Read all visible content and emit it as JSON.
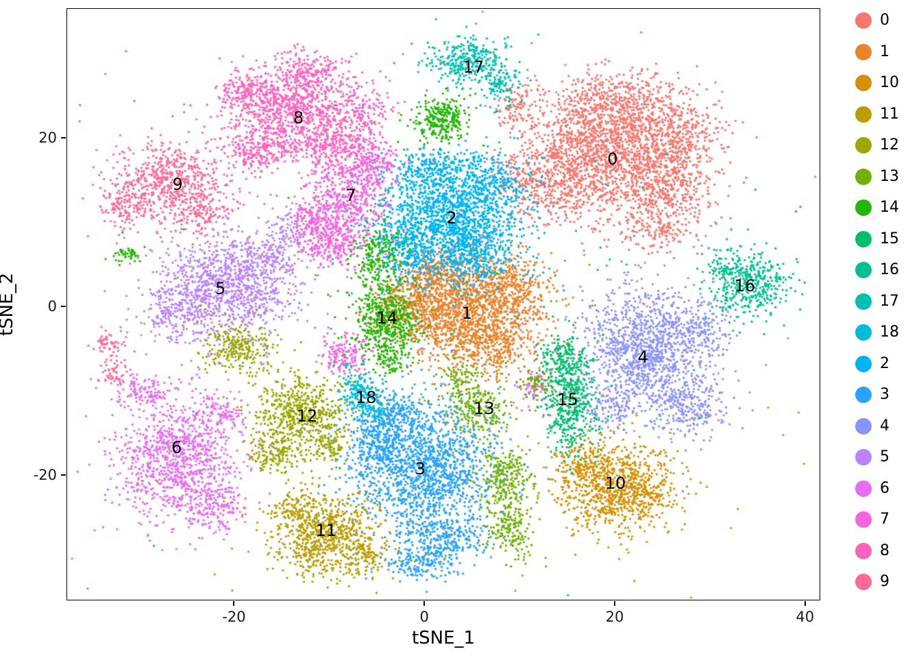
{
  "figure": {
    "background": "#FFFFFF",
    "description": "t-SNE cluster scatter plot with 19 clusters (0-18)"
  },
  "chart_data": {
    "type": "scatter",
    "title": "",
    "xlabel": "tSNE_1",
    "ylabel": "tSNE_2",
    "xlim": [
      -37.6,
      41.6
    ],
    "ylim": [
      -34.9,
      35.4
    ],
    "x_ticks": [
      -20,
      0,
      20,
      40
    ],
    "y_ticks": [
      -20,
      0,
      20
    ],
    "grid": false,
    "legend_position": "right",
    "point_radius_px": 1.7,
    "clusters": [
      {
        "id": "0",
        "color": "#F8766D",
        "label_x": 19.7,
        "label_y": 17.6,
        "blobs": [
          [
            19.5,
            18.5,
            4.2,
            3.6,
            1500
          ],
          [
            13.5,
            15,
            2.5,
            2.5,
            400
          ],
          [
            25,
            13.5,
            2.5,
            2.2,
            350
          ],
          [
            20,
            24,
            4,
            2,
            450
          ],
          [
            26.5,
            20,
            2.5,
            2.5,
            300
          ],
          [
            24.5,
            8.8,
            1.8,
            1.2,
            120
          ],
          [
            10,
            23.5,
            1.5,
            1.5,
            100
          ],
          [
            9.5,
            15,
            1,
            1.5,
            60
          ]
        ]
      },
      {
        "id": "1",
        "color": "#E9842C",
        "label_x": 4.4,
        "label_y": -0.7,
        "blobs": [
          [
            4.5,
            -0.5,
            3.8,
            3.2,
            1500
          ],
          [
            -1.5,
            0,
            2.2,
            1.8,
            350
          ],
          [
            9,
            2.5,
            2,
            2,
            300
          ],
          [
            1,
            4,
            2,
            1.5,
            250
          ],
          [
            7,
            -5,
            2,
            1.5,
            200
          ]
        ]
      },
      {
        "id": "2",
        "color": "#00B3F2",
        "label_x": 2.8,
        "label_y": 10.6,
        "blobs": [
          [
            2,
            10.5,
            3.6,
            3.4,
            1500
          ],
          [
            6.5,
            14.5,
            2,
            2,
            300
          ],
          [
            -2,
            6.5,
            1.5,
            1.5,
            200
          ],
          [
            5.5,
            6.5,
            2,
            2,
            300
          ],
          [
            0,
            16.5,
            1.5,
            1.2,
            150
          ]
        ]
      },
      {
        "id": "3",
        "color": "#29A3FF",
        "label_x": -0.5,
        "label_y": -19.2,
        "blobs": [
          [
            0,
            -19,
            3.6,
            4,
            1500
          ],
          [
            -3.5,
            -13,
            2,
            1.6,
            300
          ],
          [
            2,
            -27.5,
            2.2,
            1.8,
            300
          ],
          [
            -1,
            -30.5,
            1.5,
            1,
            120
          ],
          [
            -5,
            -17,
            1.5,
            1.5,
            200
          ]
        ]
      },
      {
        "id": "4",
        "color": "#8B93FF",
        "label_x": 22.9,
        "label_y": -5.9,
        "blobs": [
          [
            23,
            -5,
            3.2,
            3.6,
            1200
          ],
          [
            27.5,
            -11.5,
            2,
            1.8,
            250
          ],
          [
            19.5,
            -12,
            1.5,
            1.2,
            120
          ],
          [
            29.5,
            -3,
            1.5,
            2,
            150
          ]
        ]
      },
      {
        "id": "5",
        "color": "#B983FF",
        "label_x": -21.5,
        "label_y": 2.2,
        "blobs": [
          [
            -21,
            2.5,
            3.6,
            3.2,
            1100
          ],
          [
            -26.5,
            -0.5,
            1.8,
            1.5,
            150
          ],
          [
            -14,
            9.5,
            1.2,
            1.2,
            90
          ],
          [
            -16,
            6,
            1.5,
            1.2,
            120
          ]
        ]
      },
      {
        "id": "6",
        "color": "#E76BF3",
        "label_x": -26.1,
        "label_y": -16.7,
        "blobs": [
          [
            -26,
            -18,
            3.2,
            3.6,
            1000
          ],
          [
            -29.5,
            -9.8,
            1.5,
            1,
            120
          ],
          [
            -21.5,
            -12.5,
            1.2,
            1,
            80
          ],
          [
            -22,
            -24,
            1.5,
            1.5,
            150
          ],
          [
            11.5,
            -9.5,
            0.8,
            1.0,
            70
          ]
        ]
      },
      {
        "id": "7",
        "color": "#F763DF",
        "label_x": -7.8,
        "label_y": 13.3,
        "blobs": [
          [
            -8.5,
            12.5,
            2.1,
            2.4,
            480
          ],
          [
            -10,
            7.8,
            1.7,
            1.4,
            260
          ],
          [
            -5.8,
            16.8,
            1.5,
            1.5,
            220
          ],
          [
            -8.5,
            -5.5,
            1.3,
            1.2,
            160
          ],
          [
            -12,
            10.5,
            1,
            1,
            80
          ]
        ]
      },
      {
        "id": "8",
        "color": "#FF62BC",
        "label_x": -13.3,
        "label_y": 22.5,
        "blobs": [
          [
            -14,
            23.5,
            3.2,
            2.6,
            850
          ],
          [
            -9.8,
            19.2,
            2,
            1.8,
            280
          ],
          [
            -17.5,
            18.6,
            2,
            1.4,
            220
          ],
          [
            -12,
            27.8,
            2,
            1.2,
            180
          ],
          [
            -6.5,
            23.5,
            1.5,
            1.5,
            150
          ],
          [
            -19,
            25.5,
            1.3,
            1.3,
            120
          ]
        ]
      },
      {
        "id": "9",
        "color": "#FF6A98",
        "label_x": -26.0,
        "label_y": 14.6,
        "blobs": [
          [
            -27,
            14.8,
            2.9,
            2.4,
            650
          ],
          [
            -31.5,
            12,
            1.3,
            1.3,
            100
          ],
          [
            -23,
            11.5,
            1.3,
            1.3,
            100
          ],
          [
            -33.2,
            -4.3,
            0.9,
            0.9,
            55
          ],
          [
            -32.8,
            -7.8,
            0.8,
            0.8,
            45
          ]
        ]
      },
      {
        "id": "10",
        "color": "#D69100",
        "label_x": 20.0,
        "label_y": -20.9,
        "blobs": [
          [
            20.5,
            -21.5,
            3.0,
            2.6,
            900
          ],
          [
            16.5,
            -18.5,
            1.5,
            1.5,
            150
          ]
        ]
      },
      {
        "id": "11",
        "color": "#BC9D00",
        "label_x": -10.4,
        "label_y": -26.5,
        "blobs": [
          [
            -10.5,
            -27,
            2.6,
            2.4,
            750
          ],
          [
            -6,
            -29.5,
            1.5,
            1,
            100
          ],
          [
            -14,
            -24,
            1,
            1,
            80
          ]
        ]
      },
      {
        "id": "12",
        "color": "#9CA700",
        "label_x": -12.4,
        "label_y": -12.9,
        "blobs": [
          [
            -13,
            -12.5,
            2.3,
            2.1,
            550
          ],
          [
            -15.5,
            -17,
            1.5,
            1.3,
            180
          ],
          [
            -19.5,
            -4.8,
            1.8,
            1.4,
            260
          ],
          [
            -10,
            -16.5,
            1,
            1,
            80
          ]
        ]
      },
      {
        "id": "13",
        "color": "#71B000",
        "label_x": 6.2,
        "label_y": -12.0,
        "blobs": [
          [
            5.5,
            -12,
            1.6,
            1.6,
            220
          ],
          [
            8.5,
            -20.5,
            1.3,
            2,
            260
          ],
          [
            9,
            -26.5,
            1.1,
            1.6,
            160
          ],
          [
            11.5,
            -9,
            0.9,
            0.9,
            60
          ],
          [
            3.5,
            -8.5,
            1,
            1,
            70
          ]
        ]
      },
      {
        "id": "14",
        "color": "#24B700",
        "label_x": -4.0,
        "label_y": -1.3,
        "blobs": [
          [
            -4,
            -1.8,
            1.7,
            2.3,
            550
          ],
          [
            1.8,
            22.3,
            1.3,
            1.4,
            280
          ],
          [
            -5,
            6,
            1.3,
            2,
            200
          ],
          [
            -31,
            6.3,
            0.9,
            0.5,
            45
          ],
          [
            -3.5,
            -6.5,
            0.8,
            0.8,
            50
          ]
        ]
      },
      {
        "id": "15",
        "color": "#00BE70",
        "label_x": 15.0,
        "label_y": -11.0,
        "blobs": [
          [
            15.3,
            -11,
            1.5,
            3.2,
            520
          ],
          [
            14.3,
            -5.6,
            1.2,
            0.9,
            110
          ]
        ]
      },
      {
        "id": "16",
        "color": "#00C091",
        "label_x": 33.6,
        "label_y": 2.5,
        "blobs": [
          [
            34,
            2.5,
            2.0,
            2.0,
            380
          ],
          [
            31.5,
            4.5,
            1,
            0.8,
            60
          ]
        ]
      },
      {
        "id": "17",
        "color": "#00C0B4",
        "label_x": 5.1,
        "label_y": 28.5,
        "blobs": [
          [
            4.5,
            29.3,
            2.1,
            1.4,
            320
          ],
          [
            7.5,
            26.5,
            1.2,
            1.2,
            110
          ]
        ]
      },
      {
        "id": "18",
        "color": "#00BCD8",
        "label_x": -6.2,
        "label_y": -10.7,
        "blobs": [
          [
            -7,
            -10,
            1.1,
            1.4,
            170
          ],
          [
            -5.5,
            -12.5,
            0.8,
            0.8,
            50
          ]
        ]
      }
    ]
  },
  "legend": {
    "items": [
      {
        "label": "0",
        "color": "#F8766D"
      },
      {
        "label": "1",
        "color": "#E9842C"
      },
      {
        "label": "10",
        "color": "#D69100"
      },
      {
        "label": "11",
        "color": "#BC9D00"
      },
      {
        "label": "12",
        "color": "#9CA700"
      },
      {
        "label": "13",
        "color": "#71B000"
      },
      {
        "label": "14",
        "color": "#24B700"
      },
      {
        "label": "15",
        "color": "#00BE70"
      },
      {
        "label": "16",
        "color": "#00C091"
      },
      {
        "label": "17",
        "color": "#00C0B4"
      },
      {
        "label": "18",
        "color": "#00BCD8"
      },
      {
        "label": "2",
        "color": "#00B3F2"
      },
      {
        "label": "3",
        "color": "#29A3FF"
      },
      {
        "label": "4",
        "color": "#8B93FF"
      },
      {
        "label": "5",
        "color": "#B983FF"
      },
      {
        "label": "6",
        "color": "#E76BF3"
      },
      {
        "label": "7",
        "color": "#F763DF"
      },
      {
        "label": "8",
        "color": "#FF62BC"
      },
      {
        "label": "9",
        "color": "#FF6A98"
      }
    ]
  }
}
